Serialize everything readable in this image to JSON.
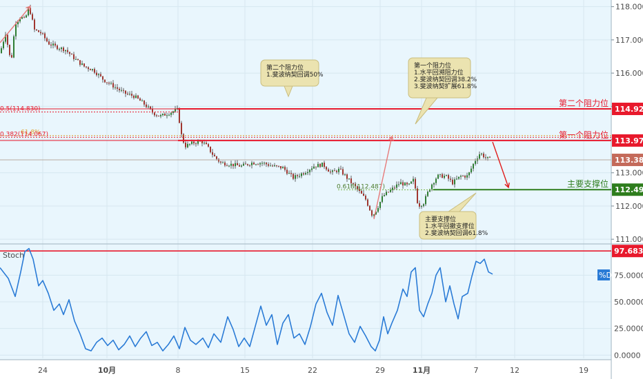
{
  "chart_data": [
    {
      "type": "candlestick",
      "ylim": [
        110.9,
        118.2
      ],
      "y_ticks": [
        "118.000",
        "117.000",
        "116.000",
        "115.000",
        "114.000",
        "113.000",
        "112.000",
        "111.000"
      ],
      "x_ticks": [
        "24",
        "10月",
        "8",
        "15",
        "22",
        "29",
        "11月",
        "7",
        "12",
        "19"
      ],
      "price_path": [
        [
          0,
          116.6
        ],
        [
          8,
          117.2
        ],
        [
          16,
          116.3
        ],
        [
          22,
          117.5
        ],
        [
          30,
          117.7
        ],
        [
          36,
          117.6
        ],
        [
          42,
          118.0
        ],
        [
          50,
          117.3
        ],
        [
          60,
          117.2
        ],
        [
          70,
          116.9
        ],
        [
          80,
          116.8
        ],
        [
          95,
          116.7
        ],
        [
          110,
          116.4
        ],
        [
          122,
          116.2
        ],
        [
          135,
          116.1
        ],
        [
          150,
          115.8
        ],
        [
          165,
          115.6
        ],
        [
          180,
          115.4
        ],
        [
          195,
          115.3
        ],
        [
          210,
          115.05
        ],
        [
          222,
          114.8
        ],
        [
          232,
          114.7
        ],
        [
          245,
          114.8
        ],
        [
          258,
          114.9
        ],
        [
          262,
          114.2
        ],
        [
          268,
          113.8
        ],
        [
          280,
          113.9
        ],
        [
          292,
          113.95
        ],
        [
          300,
          113.8
        ],
        [
          310,
          113.5
        ],
        [
          320,
          113.3
        ],
        [
          335,
          113.25
        ],
        [
          350,
          113.2
        ],
        [
          365,
          113.3
        ],
        [
          380,
          113.3
        ],
        [
          395,
          113.2
        ],
        [
          410,
          113.15
        ],
        [
          425,
          112.85
        ],
        [
          440,
          113.0
        ],
        [
          455,
          113.2
        ],
        [
          468,
          113.25
        ],
        [
          480,
          113.0
        ],
        [
          492,
          113.1
        ],
        [
          505,
          112.8
        ],
        [
          518,
          112.5
        ],
        [
          530,
          112.2
        ],
        [
          540,
          111.7
        ],
        [
          546,
          111.9
        ],
        [
          555,
          112.3
        ],
        [
          568,
          112.5
        ],
        [
          580,
          112.7
        ],
        [
          592,
          112.6
        ],
        [
          600,
          112.8
        ],
        [
          606,
          112.0
        ],
        [
          614,
          112.1
        ],
        [
          624,
          112.6
        ],
        [
          634,
          112.9
        ],
        [
          646,
          112.9
        ],
        [
          656,
          112.7
        ],
        [
          668,
          112.9
        ],
        [
          678,
          112.9
        ],
        [
          688,
          113.35
        ],
        [
          696,
          113.6
        ],
        [
          704,
          113.45
        ],
        [
          712,
          113.39
        ]
      ],
      "last_price": "113.388",
      "levels": [
        {
          "price": 114.923,
          "label": "第二个阻力位",
          "tag": "114.923",
          "color": "#e8192c"
        },
        {
          "price": 113.972,
          "label": "第一个阻力位",
          "tag": "113.972",
          "color": "#e8192c"
        },
        {
          "price": 112.492,
          "label": "主要支撑位",
          "tag": "112.492",
          "color": "#2e7d1d"
        }
      ],
      "fib_labels": [
        {
          "text": "0.5(114.830)",
          "price": 114.83
        },
        {
          "text": "61.8%",
          "price": 114.12
        },
        {
          "text": "0.382(114.067)",
          "price": 114.067
        },
        {
          "text": "0.618(112.487)",
          "price": 112.487
        }
      ],
      "callouts": [
        {
          "lines": [
            "第二个阻力位",
            "1.斐波纳契回调50%"
          ]
        },
        {
          "lines": [
            "第一个阻力位",
            "1.水平回溯阻力位",
            "2.斐波纳契回调38.2%",
            "3.斐波纳契扩展61.8%"
          ]
        },
        {
          "lines": [
            "主要支撑位",
            "1.水平回撤支撑位",
            "2.斐波纳契回调61.8%"
          ]
        }
      ]
    },
    {
      "type": "line",
      "name": "Stoch",
      "series_label": "%D",
      "ylim": [
        -3,
        103
      ],
      "y_ticks": [
        "100",
        "75.0000",
        "50.0000",
        "25.0000",
        "0.0000"
      ],
      "overbought": "97.6838",
      "points": [
        [
          0,
          82
        ],
        [
          12,
          72
        ],
        [
          22,
          55
        ],
        [
          30,
          78
        ],
        [
          36,
          97
        ],
        [
          42,
          100
        ],
        [
          48,
          90
        ],
        [
          56,
          65
        ],
        [
          62,
          70
        ],
        [
          70,
          58
        ],
        [
          78,
          42
        ],
        [
          86,
          48
        ],
        [
          92,
          38
        ],
        [
          100,
          52
        ],
        [
          108,
          32
        ],
        [
          116,
          20
        ],
        [
          124,
          6
        ],
        [
          132,
          4
        ],
        [
          140,
          12
        ],
        [
          148,
          16
        ],
        [
          156,
          9
        ],
        [
          164,
          14
        ],
        [
          172,
          5
        ],
        [
          180,
          10
        ],
        [
          188,
          18
        ],
        [
          196,
          8
        ],
        [
          204,
          16
        ],
        [
          212,
          22
        ],
        [
          220,
          9
        ],
        [
          228,
          12
        ],
        [
          236,
          4
        ],
        [
          244,
          10
        ],
        [
          252,
          18
        ],
        [
          260,
          6
        ],
        [
          268,
          26
        ],
        [
          276,
          14
        ],
        [
          284,
          10
        ],
        [
          294,
          16
        ],
        [
          302,
          7
        ],
        [
          310,
          20
        ],
        [
          320,
          12
        ],
        [
          330,
          36
        ],
        [
          338,
          24
        ],
        [
          346,
          8
        ],
        [
          354,
          16
        ],
        [
          362,
          8
        ],
        [
          370,
          27
        ],
        [
          378,
          46
        ],
        [
          386,
          28
        ],
        [
          394,
          38
        ],
        [
          402,
          10
        ],
        [
          410,
          30
        ],
        [
          418,
          38
        ],
        [
          426,
          16
        ],
        [
          434,
          20
        ],
        [
          442,
          10
        ],
        [
          450,
          27
        ],
        [
          458,
          48
        ],
        [
          466,
          58
        ],
        [
          474,
          40
        ],
        [
          482,
          28
        ],
        [
          490,
          56
        ],
        [
          498,
          38
        ],
        [
          506,
          20
        ],
        [
          514,
          12
        ],
        [
          522,
          27
        ],
        [
          530,
          18
        ],
        [
          538,
          8
        ],
        [
          544,
          4
        ],
        [
          550,
          14
        ],
        [
          556,
          36
        ],
        [
          562,
          20
        ],
        [
          568,
          30
        ],
        [
          576,
          42
        ],
        [
          584,
          62
        ],
        [
          590,
          55
        ],
        [
          596,
          78
        ],
        [
          602,
          82
        ],
        [
          608,
          42
        ],
        [
          614,
          36
        ],
        [
          620,
          48
        ],
        [
          626,
          58
        ],
        [
          632,
          75
        ],
        [
          638,
          82
        ],
        [
          646,
          50
        ],
        [
          652,
          65
        ],
        [
          658,
          48
        ],
        [
          664,
          34
        ],
        [
          670,
          55
        ],
        [
          678,
          58
        ],
        [
          684,
          74
        ],
        [
          690,
          88
        ],
        [
          696,
          86
        ],
        [
          702,
          90
        ],
        [
          708,
          78
        ],
        [
          714,
          76
        ]
      ]
    }
  ]
}
